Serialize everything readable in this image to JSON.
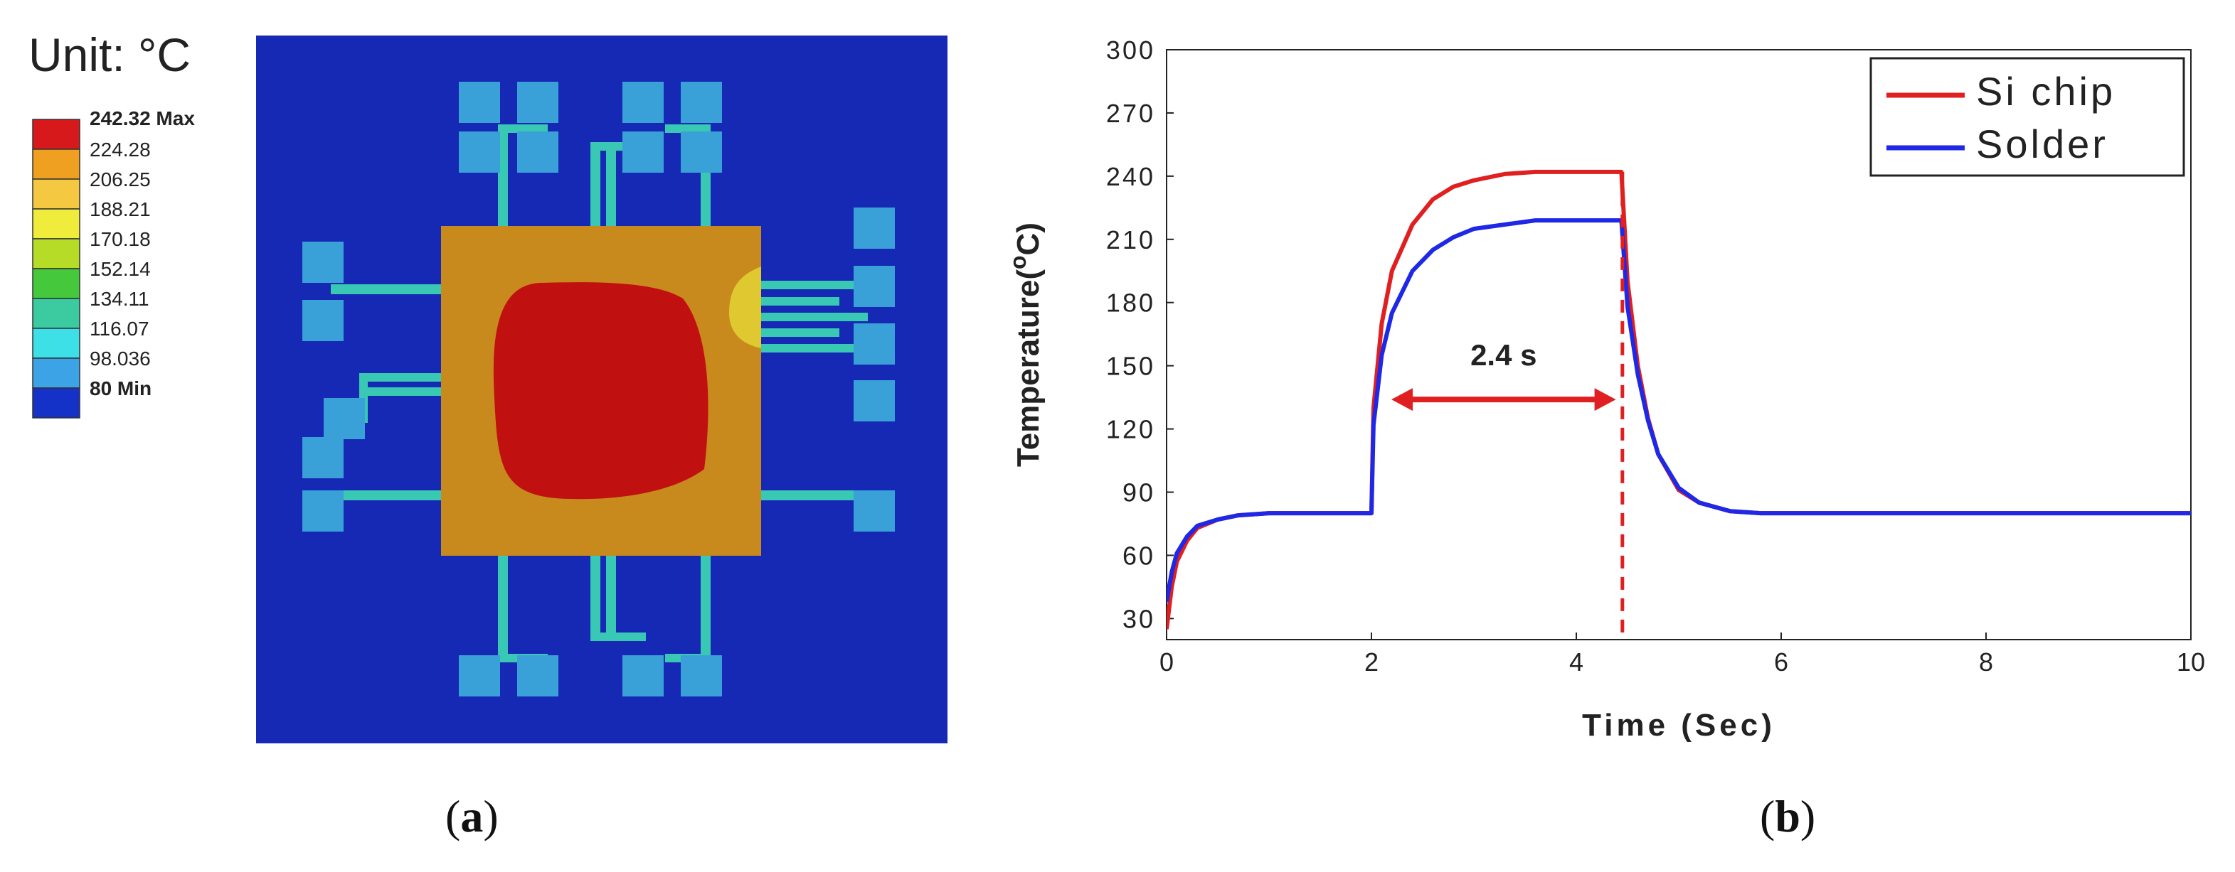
{
  "panel_a": {
    "unit_label": "Unit: °C",
    "legend": [
      {
        "label": "242.32 Max",
        "color": "#d7191c",
        "bold": true
      },
      {
        "label": "224.28",
        "color": "#f0a020",
        "bold": false
      },
      {
        "label": "206.25",
        "color": "#f5c842",
        "bold": false
      },
      {
        "label": "188.21",
        "color": "#f0ec3c",
        "bold": false
      },
      {
        "label": "170.18",
        "color": "#b6dc28",
        "bold": false
      },
      {
        "label": "152.14",
        "color": "#46c83c",
        "bold": false
      },
      {
        "label": "134.11",
        "color": "#3ccaa0",
        "bold": false
      },
      {
        "label": "116.07",
        "color": "#3ce0e6",
        "bold": false
      },
      {
        "label": "98.036",
        "color": "#3ca4e6",
        "bold": false
      },
      {
        "label": "80 Min",
        "color": "#1432c8",
        "bold": true
      }
    ],
    "colors": {
      "background": "#1529b4",
      "package": "#c88a1c",
      "hotspot": "#c01010",
      "pad": "#3aa0d8",
      "trace": "#38c8b4"
    }
  },
  "panel_b": {
    "annotation": "2.4 s",
    "colors": {
      "si_chip": "#e02020",
      "solder": "#1e28e6"
    }
  },
  "chart_data": {
    "type": "line",
    "xlabel": "Time (Sec)",
    "ylabel_main": "Temperature(",
    "ylabel_sup": "o",
    "ylabel_end": "C)",
    "xlim": [
      0,
      10
    ],
    "ylim": [
      20,
      300
    ],
    "xticks": [
      "0",
      "2",
      "4",
      "6",
      "8",
      "10"
    ],
    "yticks": [
      "30",
      "60",
      "90",
      "120",
      "150",
      "180",
      "210",
      "240",
      "270",
      "300"
    ],
    "legend_position": "top-right",
    "series": [
      {
        "name": "Si chip",
        "color": "#e02020",
        "x": [
          0,
          0.05,
          0.1,
          0.2,
          0.3,
          0.5,
          0.7,
          1.0,
          1.5,
          2.0,
          2.02,
          2.1,
          2.2,
          2.4,
          2.6,
          2.8,
          3.0,
          3.3,
          3.6,
          4.0,
          4.4,
          4.44,
          4.5,
          4.6,
          4.7,
          4.8,
          5.0,
          5.2,
          5.5,
          5.8,
          6.0,
          7.0,
          8.0,
          9.0,
          10.0
        ],
        "y": [
          25,
          45,
          57,
          67,
          73,
          77,
          79,
          80,
          80,
          80,
          130,
          170,
          195,
          217,
          229,
          235,
          238,
          241,
          242,
          242,
          242,
          242,
          190,
          150,
          125,
          108,
          91,
          85,
          81,
          80,
          80,
          80,
          80,
          80,
          80
        ]
      },
      {
        "name": "Solder",
        "color": "#1e28e6",
        "x": [
          0,
          0.05,
          0.1,
          0.2,
          0.3,
          0.5,
          0.7,
          1.0,
          1.5,
          2.0,
          2.02,
          2.1,
          2.2,
          2.4,
          2.6,
          2.8,
          3.0,
          3.3,
          3.6,
          4.0,
          4.4,
          4.44,
          4.5,
          4.6,
          4.7,
          4.8,
          5.0,
          5.2,
          5.5,
          5.8,
          6.0,
          7.0,
          8.0,
          9.0,
          10.0
        ],
        "y": [
          38,
          52,
          61,
          69,
          74,
          77,
          79,
          80,
          80,
          80,
          122,
          155,
          175,
          195,
          205,
          211,
          215,
          217,
          219,
          219,
          219,
          219,
          178,
          146,
          124,
          108,
          92,
          85,
          81,
          80,
          80,
          80,
          80,
          80,
          80
        ]
      }
    ],
    "annotations": [
      {
        "type": "double-arrow",
        "from_x": 2.0,
        "to_x": 4.4,
        "y": 134,
        "label": "2.4 s"
      },
      {
        "type": "dashed-vline",
        "x": 4.45,
        "y_from": 20,
        "y_to": 242
      }
    ]
  },
  "captions": {
    "a": "a",
    "b": "b"
  }
}
